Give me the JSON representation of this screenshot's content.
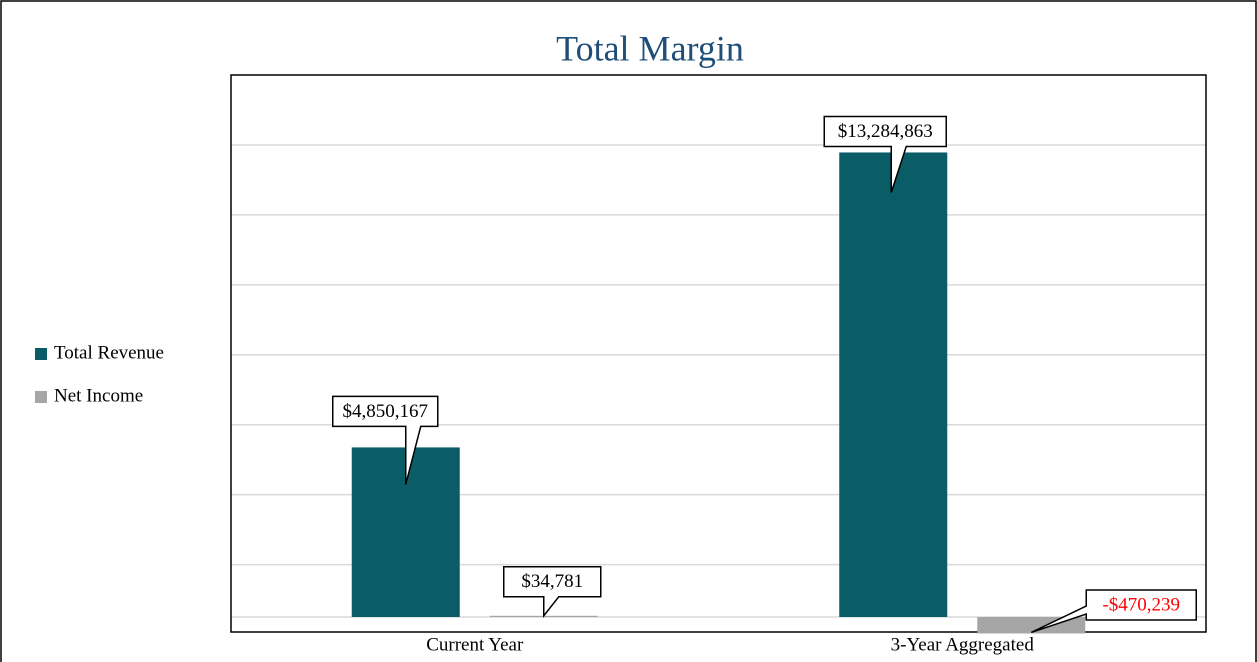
{
  "chart_data": {
    "type": "bar",
    "title": "Total Margin",
    "categories": [
      "Current Year",
      "3-Year Aggregated"
    ],
    "series": [
      {
        "name": "Total Revenue",
        "color": "#0a5c66",
        "values": [
          4850167,
          13284863
        ],
        "value_labels": [
          "$4,850,167",
          "$13,284,863"
        ]
      },
      {
        "name": "Net Income",
        "color": "#a6a6a6",
        "values": [
          34781,
          -470239
        ],
        "value_labels": [
          "$34,781",
          "-$470,239"
        ]
      }
    ],
    "ylim": [
      -500000,
      15500000
    ],
    "yticks": [
      -500000,
      1500000,
      3500000,
      5500000,
      7500000,
      9500000,
      11500000,
      13500000,
      15500000
    ],
    "grid": true,
    "legend": "left",
    "negative_label_color": "#ff0000"
  }
}
